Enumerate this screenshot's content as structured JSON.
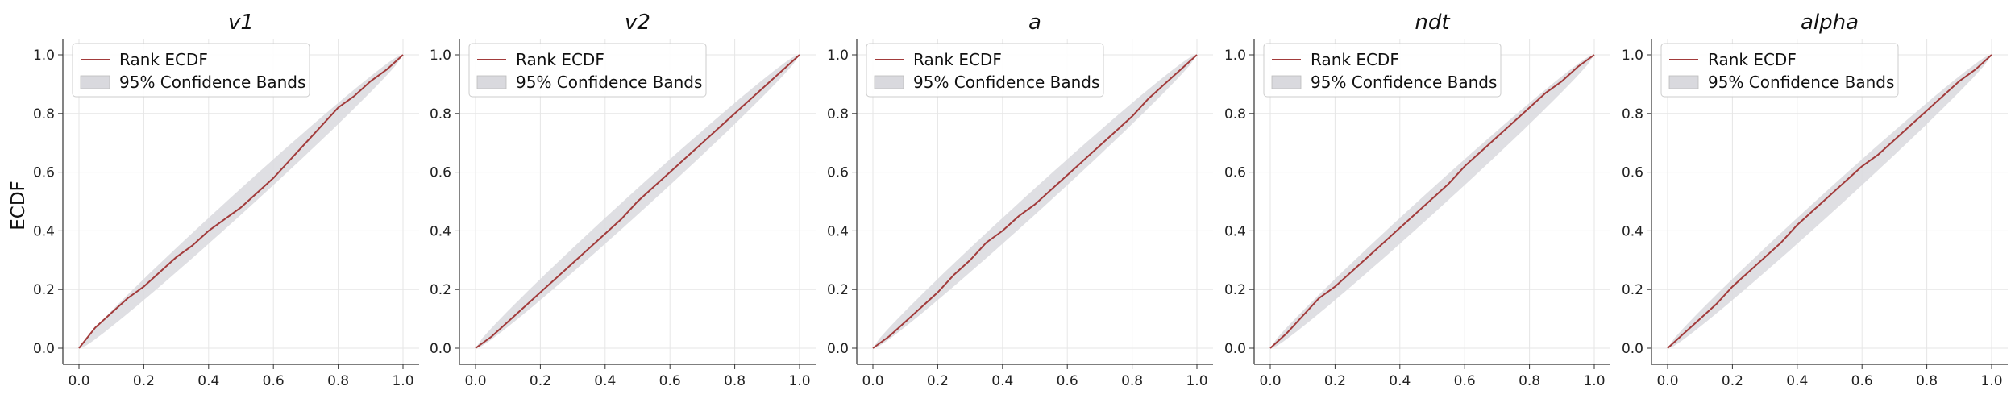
{
  "colors": {
    "ecdf": "#a23b3b",
    "band": "#d9d9de",
    "grid": "#e6e6e6",
    "axis": "#333333"
  },
  "ylabel": "ECDF",
  "legend": {
    "line_label": "Rank ECDF",
    "band_label": "95% Confidence Bands",
    "placement": "upper-left"
  },
  "chart_data": [
    {
      "type": "line",
      "title": "v1",
      "xlim": [
        0,
        1
      ],
      "ylim": [
        0,
        1
      ],
      "xticks": [
        "0.0",
        "0.2",
        "0.4",
        "0.6",
        "0.8",
        "1.0"
      ],
      "yticks": [
        "0.0",
        "0.2",
        "0.4",
        "0.6",
        "0.8",
        "1.0"
      ],
      "grid": true,
      "series": [
        {
          "name": "Rank ECDF",
          "x": [
            0,
            0.05,
            0.1,
            0.15,
            0.2,
            0.25,
            0.3,
            0.35,
            0.4,
            0.45,
            0.5,
            0.55,
            0.6,
            0.65,
            0.7,
            0.75,
            0.8,
            0.85,
            0.9,
            0.95,
            1
          ],
          "y": [
            0,
            0.07,
            0.12,
            0.17,
            0.21,
            0.26,
            0.31,
            0.35,
            0.4,
            0.44,
            0.48,
            0.53,
            0.58,
            0.64,
            0.7,
            0.76,
            0.82,
            0.86,
            0.91,
            0.95,
            1
          ]
        }
      ],
      "band": {
        "name": "95% Confidence Bands",
        "halfwidth": 0.045
      }
    },
    {
      "type": "line",
      "title": "v2",
      "xlim": [
        0,
        1
      ],
      "ylim": [
        0,
        1
      ],
      "xticks": [
        "0.0",
        "0.2",
        "0.4",
        "0.6",
        "0.8",
        "1.0"
      ],
      "yticks": [
        "0.0",
        "0.2",
        "0.4",
        "0.6",
        "0.8",
        "1.0"
      ],
      "grid": true,
      "series": [
        {
          "name": "Rank ECDF",
          "x": [
            0,
            0.05,
            0.1,
            0.15,
            0.2,
            0.25,
            0.3,
            0.35,
            0.4,
            0.45,
            0.5,
            0.55,
            0.6,
            0.65,
            0.7,
            0.75,
            0.8,
            0.85,
            0.9,
            0.95,
            1
          ],
          "y": [
            0,
            0.04,
            0.09,
            0.14,
            0.19,
            0.24,
            0.29,
            0.34,
            0.39,
            0.44,
            0.5,
            0.55,
            0.6,
            0.65,
            0.7,
            0.75,
            0.8,
            0.85,
            0.9,
            0.95,
            1
          ]
        }
      ],
      "band": {
        "name": "95% Confidence Bands",
        "halfwidth": 0.045
      }
    },
    {
      "type": "line",
      "title": "a",
      "xlim": [
        0,
        1
      ],
      "ylim": [
        0,
        1
      ],
      "xticks": [
        "0.0",
        "0.2",
        "0.4",
        "0.6",
        "0.8",
        "1.0"
      ],
      "yticks": [
        "0.0",
        "0.2",
        "0.4",
        "0.6",
        "0.8",
        "1.0"
      ],
      "grid": true,
      "series": [
        {
          "name": "Rank ECDF",
          "x": [
            0,
            0.05,
            0.1,
            0.15,
            0.2,
            0.25,
            0.3,
            0.35,
            0.4,
            0.45,
            0.5,
            0.55,
            0.6,
            0.65,
            0.7,
            0.75,
            0.8,
            0.85,
            0.9,
            0.95,
            1
          ],
          "y": [
            0,
            0.04,
            0.09,
            0.14,
            0.19,
            0.25,
            0.3,
            0.36,
            0.4,
            0.45,
            0.49,
            0.54,
            0.59,
            0.64,
            0.69,
            0.74,
            0.79,
            0.85,
            0.9,
            0.95,
            1
          ]
        }
      ],
      "band": {
        "name": "95% Confidence Bands",
        "halfwidth": 0.045
      }
    },
    {
      "type": "line",
      "title": "ndt",
      "xlim": [
        0,
        1
      ],
      "ylim": [
        0,
        1
      ],
      "xticks": [
        "0.0",
        "0.2",
        "0.4",
        "0.6",
        "0.8",
        "1.0"
      ],
      "yticks": [
        "0.0",
        "0.2",
        "0.4",
        "0.6",
        "0.8",
        "1.0"
      ],
      "grid": true,
      "series": [
        {
          "name": "Rank ECDF",
          "x": [
            0,
            0.05,
            0.1,
            0.15,
            0.2,
            0.25,
            0.3,
            0.35,
            0.4,
            0.45,
            0.5,
            0.55,
            0.6,
            0.65,
            0.7,
            0.75,
            0.8,
            0.85,
            0.9,
            0.95,
            1
          ],
          "y": [
            0,
            0.05,
            0.11,
            0.17,
            0.21,
            0.26,
            0.31,
            0.36,
            0.41,
            0.46,
            0.51,
            0.56,
            0.62,
            0.67,
            0.72,
            0.77,
            0.82,
            0.87,
            0.91,
            0.96,
            1
          ]
        }
      ],
      "band": {
        "name": "95% Confidence Bands",
        "halfwidth": 0.045
      }
    },
    {
      "type": "line",
      "title": "alpha",
      "xlim": [
        0,
        1
      ],
      "ylim": [
        0,
        1
      ],
      "xticks": [
        "0.0",
        "0.2",
        "0.4",
        "0.6",
        "0.8",
        "1.0"
      ],
      "yticks": [
        "0.0",
        "0.2",
        "0.4",
        "0.6",
        "0.8",
        "1.0"
      ],
      "grid": true,
      "series": [
        {
          "name": "Rank ECDF",
          "x": [
            0,
            0.05,
            0.1,
            0.15,
            0.2,
            0.25,
            0.3,
            0.35,
            0.4,
            0.45,
            0.5,
            0.55,
            0.6,
            0.65,
            0.7,
            0.75,
            0.8,
            0.85,
            0.9,
            0.95,
            1
          ],
          "y": [
            0,
            0.05,
            0.1,
            0.15,
            0.21,
            0.26,
            0.31,
            0.36,
            0.42,
            0.47,
            0.52,
            0.57,
            0.62,
            0.66,
            0.71,
            0.76,
            0.81,
            0.86,
            0.91,
            0.95,
            1
          ]
        }
      ],
      "band": {
        "name": "95% Confidence Bands",
        "halfwidth": 0.045
      }
    }
  ]
}
